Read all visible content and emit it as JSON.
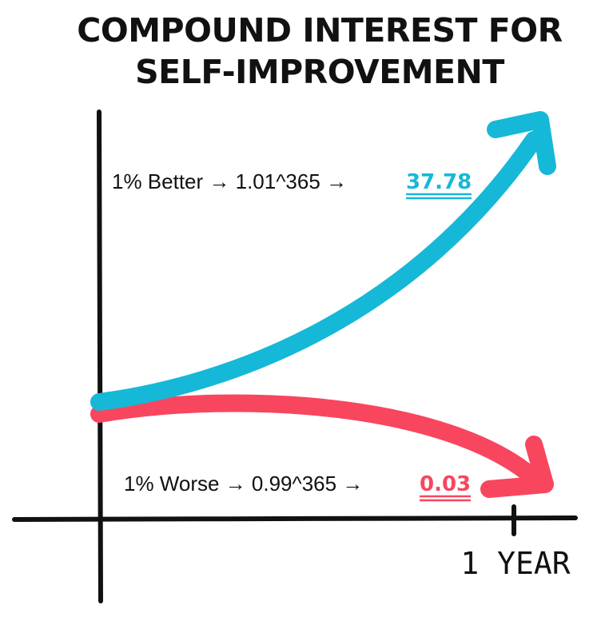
{
  "title": {
    "line1": "COMPOUND INTEREST FOR",
    "line2": "SELF-IMPROVEMENT"
  },
  "colors": {
    "better": "#16b8d8",
    "worse": "#f8465f",
    "axis": "#111111",
    "text": "#111111"
  },
  "chart_data": {
    "type": "line",
    "xlabel": "",
    "ylabel": "",
    "x_ticks": [
      {
        "x": 365,
        "label": "1 YEAR"
      }
    ],
    "grid": false,
    "series": [
      {
        "key": "better",
        "formula_text": "1% Better → 1.01^365 →",
        "result": "37.78",
        "daily_factor": 1.01,
        "days": 365,
        "final_value": 37.78
      },
      {
        "key": "worse",
        "formula_text": "1% Worse → 0.99^365 →",
        "result": "0.03",
        "daily_factor": 0.99,
        "days": 365,
        "final_value": 0.03
      }
    ]
  }
}
